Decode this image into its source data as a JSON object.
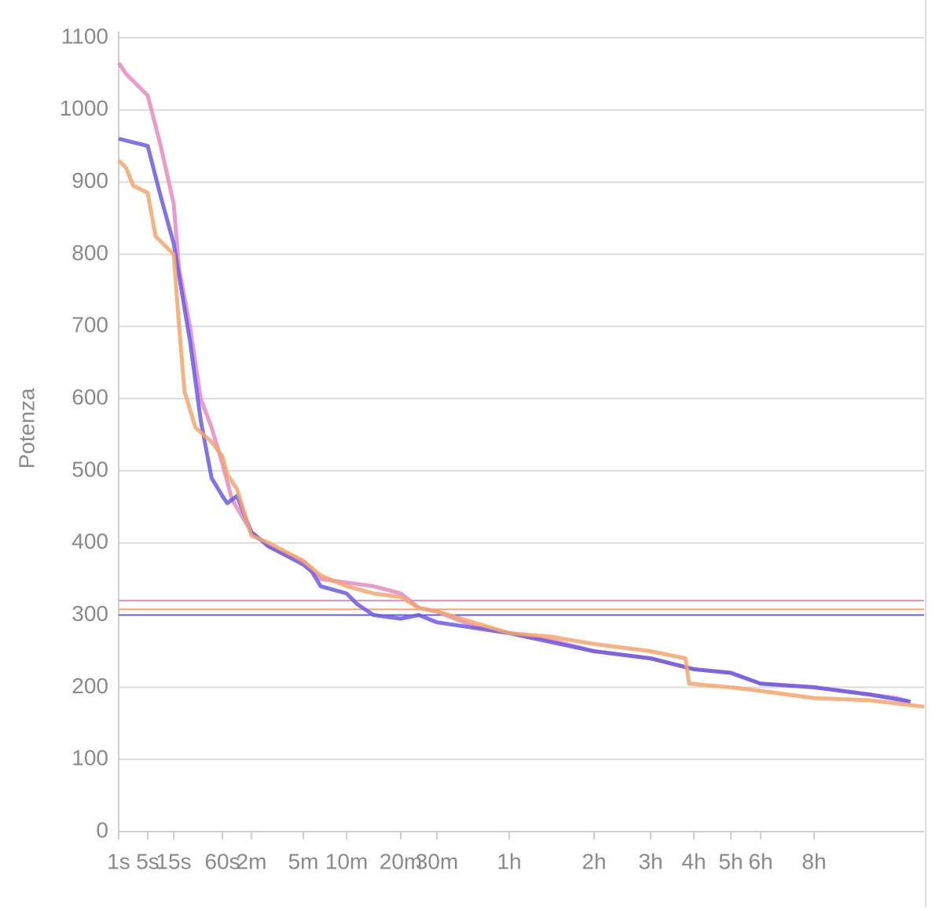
{
  "chart_data": {
    "type": "line",
    "y_label": "Potenza",
    "ylim": [
      0,
      1100
    ],
    "yticks": [
      0,
      100,
      200,
      300,
      400,
      500,
      600,
      700,
      800,
      900,
      1000,
      1100
    ],
    "xlim": [
      1,
      43200
    ],
    "xticks": [
      {
        "value": 1,
        "label": "1s"
      },
      {
        "value": 5,
        "label": "5s"
      },
      {
        "value": 15,
        "label": "15s"
      },
      {
        "value": 60,
        "label": "60s"
      },
      {
        "value": 120,
        "label": "2m"
      },
      {
        "value": 300,
        "label": "5m"
      },
      {
        "value": 600,
        "label": "10m"
      },
      {
        "value": 1200,
        "label": "20m"
      },
      {
        "value": 1800,
        "label": "30m"
      },
      {
        "value": 3600,
        "label": "1h"
      },
      {
        "value": 7200,
        "label": "2h"
      },
      {
        "value": 10800,
        "label": "3h"
      },
      {
        "value": 14400,
        "label": "4h"
      },
      {
        "value": 18000,
        "label": "5h"
      },
      {
        "value": 21600,
        "label": "6h"
      },
      {
        "value": 28800,
        "label": "8h"
      }
    ],
    "grid": true,
    "reference_lines": [
      {
        "value": 320,
        "color": "#e68ac0"
      },
      {
        "value": 308,
        "color": "#f5a56a"
      },
      {
        "value": 300,
        "color": "#6b5be6"
      }
    ],
    "series": [
      {
        "color": "#e68ac0",
        "x": [
          1,
          2,
          5,
          10,
          15,
          20,
          30,
          40,
          50,
          60,
          80,
          120,
          180,
          300,
          420,
          600,
          900,
          1200,
          1500,
          1800,
          2700,
          3600,
          5400,
          7200,
          10800,
          14400,
          18000,
          21600,
          28800,
          36000,
          39600,
          41400
        ],
        "values": [
          1065,
          1050,
          1020,
          950,
          870,
          780,
          700,
          600,
          560,
          510,
          460,
          415,
          395,
          375,
          350,
          345,
          340,
          330,
          310,
          305,
          285,
          275,
          265,
          250,
          240,
          225,
          220,
          205,
          200,
          190,
          185,
          180
        ]
      },
      {
        "color": "#6b5be6",
        "x": [
          1,
          5,
          10,
          15,
          20,
          30,
          40,
          50,
          60,
          70,
          90,
          120,
          180,
          300,
          360,
          420,
          600,
          720,
          900,
          1200,
          1500,
          1800,
          2400,
          3600,
          7200,
          10800,
          14400,
          18000,
          21600,
          28800,
          36000,
          41400
        ],
        "values": [
          960,
          950,
          880,
          815,
          770,
          680,
          570,
          490,
          465,
          455,
          465,
          415,
          395,
          370,
          360,
          340,
          330,
          315,
          300,
          295,
          300,
          290,
          285,
          275,
          250,
          240,
          225,
          220,
          205,
          200,
          190,
          180
        ]
      },
      {
        "color": "#f5a56a",
        "x": [
          1,
          2,
          3,
          5,
          8,
          15,
          20,
          25,
          35,
          50,
          60,
          70,
          90,
          120,
          180,
          300,
          420,
          600,
          900,
          1200,
          1500,
          1800,
          3600,
          5400,
          7200,
          10800,
          13700,
          14000,
          18000,
          21600,
          28800,
          36000,
          43200
        ],
        "values": [
          930,
          920,
          895,
          885,
          825,
          800,
          700,
          610,
          560,
          540,
          520,
          495,
          475,
          410,
          400,
          375,
          355,
          340,
          330,
          325,
          310,
          305,
          275,
          270,
          260,
          250,
          240,
          205,
          200,
          195,
          185,
          182,
          173
        ]
      }
    ]
  }
}
